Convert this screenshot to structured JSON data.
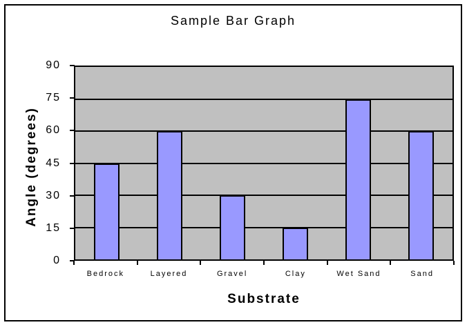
{
  "window": {
    "background_color": "#FFFFFF",
    "frame_border_color": "#000000"
  },
  "chart_data": {
    "type": "bar",
    "title": "Sample Bar Graph",
    "xlabel": "Substrate",
    "ylabel": "Angle (degrees)",
    "categories": [
      "Bedrock",
      "Layered",
      "Gravel",
      "Clay",
      "Wet Sand",
      "Sand"
    ],
    "values": [
      45,
      60,
      30,
      15,
      75,
      60
    ],
    "ylim": [
      0,
      90
    ],
    "yticks": [
      0,
      15,
      30,
      45,
      60,
      75,
      90
    ],
    "grid": true,
    "legend": false,
    "colors": {
      "bar_fill": "#9999FF",
      "bar_border": "#000000",
      "plot_background": "#C0C0C0",
      "gridline": "#000000",
      "axis": "#000000",
      "text": "#000000"
    }
  }
}
